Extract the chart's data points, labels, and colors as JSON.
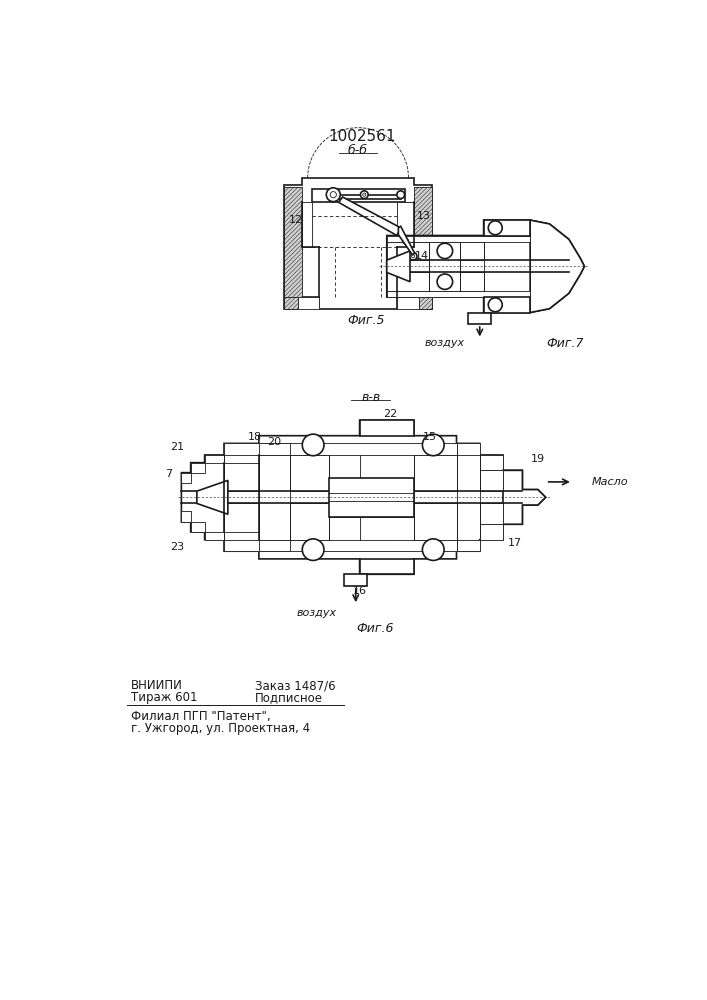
{
  "patent_number": "1002561",
  "fig5_label": "б-б",
  "fig6_label": "в-в",
  "fig5_caption": "Фиг.5",
  "fig6_caption": "Фиг.6",
  "fig7_caption": "Фиг.7",
  "maslo_label": "Масло",
  "vozduh_label": "воздух",
  "label_12": "12",
  "label_13": "13",
  "label_14": "14",
  "label_7": "7",
  "label_15": "15",
  "label_16": "16",
  "label_17": "17",
  "label_18": "18",
  "label_19": "19",
  "label_20": "20",
  "label_21": "21",
  "label_22": "22",
  "label_23": "23",
  "vniiipi_line1": "ВНИИПИ",
  "vniiipi_line2": "Тираж 601",
  "zakaz_line1": "Заказ 1487/6",
  "zakaz_line2": "Подписное",
  "filial_line1": "Филиал ПГП \"Патент\",",
  "filial_line2": "г. Ужгород, ул. Проектная, 4",
  "line_color": "#1a1a1a"
}
